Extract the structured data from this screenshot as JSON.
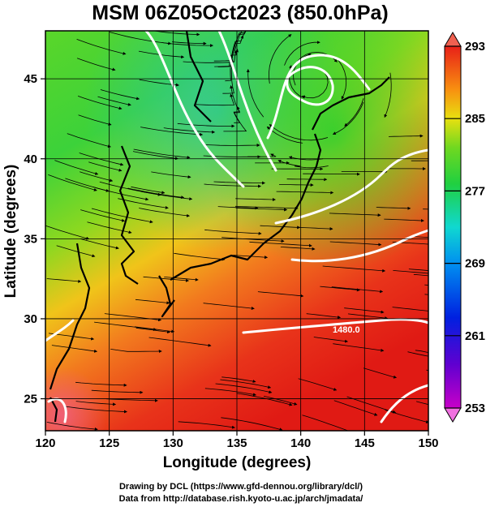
{
  "title": "MSM 06Z05Oct2023 (850.0hPa)",
  "x_axis": {
    "label": "Longitude (degrees)",
    "ticks": [
      "120",
      "125",
      "130",
      "135",
      "140",
      "145",
      "150"
    ]
  },
  "y_axis": {
    "label": "Latitude  (degrees)",
    "ticks": [
      "25",
      "30",
      "35",
      "40",
      "45"
    ]
  },
  "colorbar": {
    "labels": [
      "293",
      "285",
      "277",
      "269",
      "261",
      "253"
    ]
  },
  "contour_label": "1480.0",
  "credits": [
    "Drawing by DCL (https://www.gfd-dennou.org/library/dcl/)",
    "Data from http://database.rish.kyoto-u.ac.jp/arch/jmadata/"
  ],
  "map_data": {
    "extent": {
      "lon": [
        120,
        150
      ],
      "lat": [
        23,
        48
      ]
    },
    "field": "temperature (K) with geopotential height contours and wind streamlines",
    "color_range": [
      253,
      293
    ],
    "colors": {
      "warm": "#e8231a",
      "mid": "#f5b800",
      "cool": "#2bc82b",
      "cold": "#12d6c8",
      "coldest": "#c800c8"
    }
  }
}
